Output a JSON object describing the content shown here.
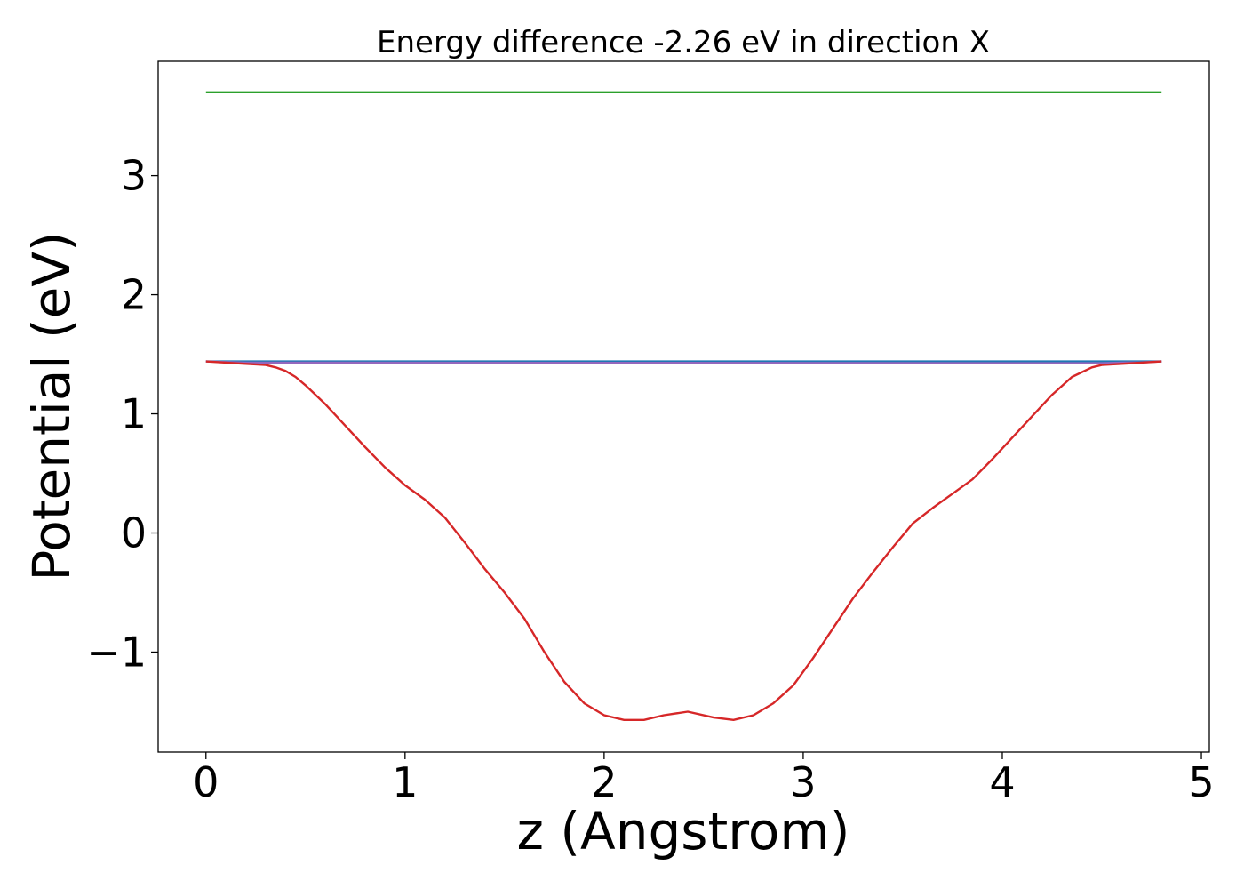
{
  "chart_data": {
    "type": "line",
    "title": "Energy difference -2.26 eV in direction X",
    "xlabel": "z (Angstrom)",
    "ylabel": "Potential (eV)",
    "xlim": [
      -0.24,
      5.04
    ],
    "ylim": [
      -1.84,
      3.96
    ],
    "xticks": [
      0,
      1,
      2,
      3,
      4,
      5
    ],
    "xtick_labels": [
      "0",
      "1",
      "2",
      "3",
      "4",
      "5"
    ],
    "yticks": [
      -1,
      0,
      1,
      2,
      3
    ],
    "ytick_labels": [
      "−1",
      "0",
      "1",
      "2",
      "3"
    ],
    "grid": false,
    "series": [
      {
        "color": "#2ca02c",
        "x": [
          0,
          4.8
        ],
        "y": [
          3.7,
          3.7
        ]
      },
      {
        "color": "#1f77b4",
        "x": [
          0,
          4.8
        ],
        "y": [
          1.44,
          1.44
        ]
      },
      {
        "color": "#9467bd",
        "x": [
          0,
          0.1,
          0.2,
          0.3,
          4.5,
          4.6,
          4.7,
          4.8
        ],
        "y": [
          1.44,
          1.435,
          1.43,
          1.43,
          1.425,
          1.43,
          1.432,
          1.44
        ]
      },
      {
        "color": "#d62728",
        "x": [
          0,
          0.1,
          0.2,
          0.3,
          0.35,
          0.4,
          0.45,
          0.5,
          0.6,
          0.7,
          0.8,
          0.9,
          1.0,
          1.1,
          1.2,
          1.3,
          1.4,
          1.5,
          1.6,
          1.7,
          1.8,
          1.9,
          2.0,
          2.1,
          2.2,
          2.3,
          2.42,
          2.55,
          2.65,
          2.75,
          2.85,
          2.95,
          3.05,
          3.15,
          3.25,
          3.35,
          3.45,
          3.55,
          3.65,
          3.75,
          3.85,
          3.95,
          4.05,
          4.15,
          4.25,
          4.35,
          4.45,
          4.5,
          4.6,
          4.7,
          4.8
        ],
        "y": [
          1.44,
          1.43,
          1.42,
          1.41,
          1.39,
          1.36,
          1.31,
          1.24,
          1.08,
          0.9,
          0.72,
          0.55,
          0.4,
          0.28,
          0.13,
          -0.08,
          -0.3,
          -0.5,
          -0.72,
          -1.0,
          -1.25,
          -1.43,
          -1.53,
          -1.57,
          -1.57,
          -1.53,
          -1.5,
          -1.55,
          -1.57,
          -1.53,
          -1.43,
          -1.28,
          -1.05,
          -0.8,
          -0.55,
          -0.33,
          -0.12,
          0.08,
          0.21,
          0.33,
          0.45,
          0.62,
          0.8,
          0.98,
          1.16,
          1.31,
          1.39,
          1.41,
          1.42,
          1.43,
          1.44
        ]
      }
    ]
  }
}
